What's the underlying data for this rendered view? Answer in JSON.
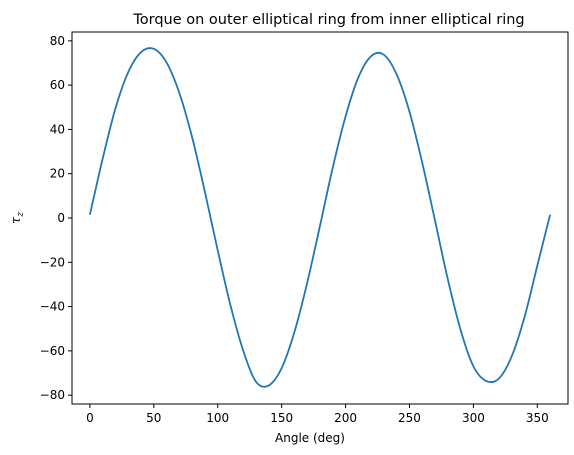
{
  "chart_data": {
    "type": "line",
    "title": "Torque on outer elliptical ring from inner elliptical ring",
    "xlabel": "Angle (deg)",
    "ylabel": "τ",
    "ylabel_subscript": "z",
    "xlim": [
      -14,
      374
    ],
    "ylim": [
      -84,
      84
    ],
    "xticks": [
      0,
      50,
      100,
      150,
      200,
      250,
      300,
      350
    ],
    "yticks": [
      -80,
      -60,
      -40,
      -20,
      0,
      20,
      40,
      60,
      80
    ],
    "grid": false,
    "line_color": "#1f77b4",
    "series": [
      {
        "x": [
          0,
          10,
          20,
          30,
          40,
          50,
          60,
          70,
          80,
          90,
          100,
          110,
          120,
          130,
          140,
          150,
          160,
          170,
          180,
          190,
          200,
          210,
          220,
          230,
          240,
          250,
          260,
          270,
          280,
          290,
          300,
          310,
          320,
          330,
          340,
          350,
          360
        ],
        "y": [
          1.5,
          26.8,
          49.5,
          65.9,
          74.9,
          76.4,
          70.2,
          56.4,
          36.4,
          11.7,
          -14.6,
          -39.5,
          -60.0,
          -74.0,
          -75.6,
          -67.8,
          -51.5,
          -29.2,
          -3.5,
          22.8,
          45.9,
          63.5,
          73.1,
          73.7,
          64.8,
          48.0,
          24.9,
          -1.2,
          -27.7,
          -50.6,
          -67.0,
          -73.6,
          -72.5,
          -62.4,
          -44.7,
          -21.5,
          1.5
        ]
      }
    ]
  }
}
